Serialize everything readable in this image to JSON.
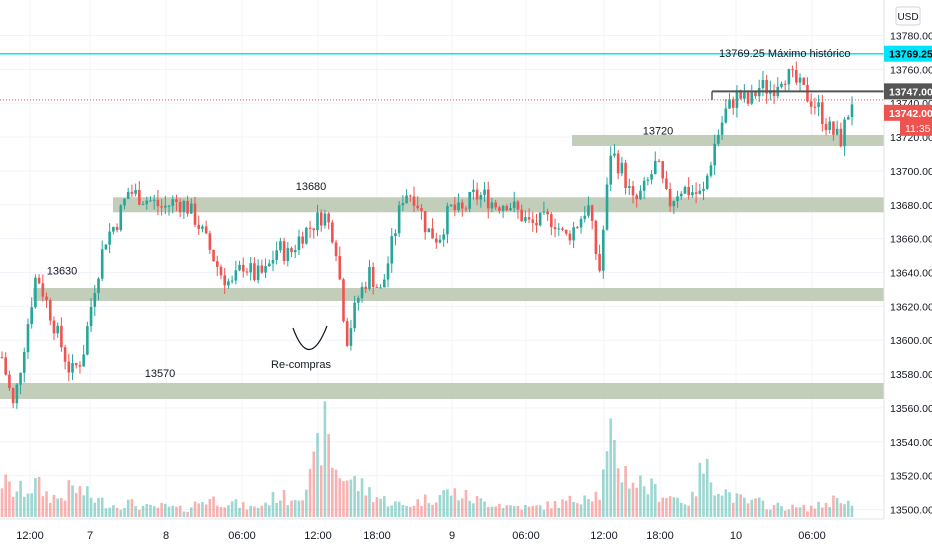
{
  "currency_label": "USD",
  "chart_data": {
    "type": "candlestick",
    "symbol_currency": "USD",
    "ylim": [
      13495,
      13795
    ],
    "y_ticks": [
      "13780.00",
      "13760.00",
      "13740.00",
      "13720.00",
      "13700.00",
      "13680.00",
      "13660.00",
      "13640.00",
      "13620.00",
      "13600.00",
      "13580.00",
      "13560.00",
      "13540.00",
      "13520.00",
      "13500.00"
    ],
    "y_tick_values": [
      13780,
      13760,
      13740,
      13720,
      13700,
      13680,
      13660,
      13640,
      13620,
      13600,
      13580,
      13560,
      13540,
      13520,
      13500
    ],
    "x_ticks": [
      "12:00",
      "7",
      "8",
      "06:00",
      "12:00",
      "18:00",
      "9",
      "06:00",
      "12:00",
      "18:00",
      "10",
      "06:00"
    ],
    "price_badges": [
      {
        "label": "13769.25",
        "value": 13769.25,
        "color": "#00e5ff",
        "text_color": "#000000"
      },
      {
        "label": "13747.00",
        "value": 13747.0,
        "color": "#555555",
        "text_color": "#ffffff"
      },
      {
        "label": "13742.00",
        "value": 13742.0,
        "color": "#ef5350",
        "text_color": "#ffffff"
      }
    ],
    "countdown_badge": {
      "label": "11:35",
      "color": "#ef5350"
    },
    "horizontal_lines": [
      {
        "value": 13769.25,
        "color": "#00e5ff",
        "style": "solid"
      },
      {
        "value": 13742.0,
        "color": "#ef5350",
        "style": "dotted"
      }
    ],
    "zones": [
      {
        "label": "13570",
        "value": 13570
      },
      {
        "label": "13630",
        "value": 13627
      },
      {
        "label": "13680",
        "value": 13680
      },
      {
        "label": "13720",
        "value": 13718
      }
    ],
    "annotations": [
      {
        "text": "13769.25 Máximo histórico"
      },
      {
        "text": "Re-compras"
      }
    ],
    "colors": {
      "up": "#26a69a",
      "down": "#ef5350",
      "zone": "#b7c5ad",
      "resistance": "#555555"
    },
    "price_path": [
      13590,
      13560,
      13600,
      13640,
      13620,
      13600,
      13580,
      13590,
      13630,
      13660,
      13670,
      13688,
      13685,
      13682,
      13678,
      13682,
      13680,
      13670,
      13655,
      13640,
      13632,
      13645,
      13638,
      13640,
      13655,
      13650,
      13662,
      13668,
      13675,
      13660,
      13600,
      13625,
      13640,
      13628,
      13658,
      13688,
      13685,
      13665,
      13660,
      13678,
      13675,
      13685,
      13685,
      13680,
      13682,
      13675,
      13668,
      13670,
      13672,
      13660,
      13668,
      13680,
      13640,
      13712,
      13700,
      13680,
      13690,
      13705,
      13680,
      13690,
      13688,
      13685,
      13715,
      13735,
      13745,
      13740,
      13750,
      13748,
      13758,
      13753,
      13745,
      13738,
      13725,
      13718,
      13742
    ],
    "volume_path": [
      20,
      14,
      15,
      18,
      12,
      10,
      16,
      14,
      10,
      8,
      6,
      8,
      6,
      5,
      6,
      5,
      4,
      8,
      10,
      9,
      8,
      6,
      5,
      8,
      12,
      10,
      14,
      22,
      50,
      26,
      22,
      18,
      14,
      10,
      8,
      6,
      8,
      10,
      12,
      14,
      12,
      10,
      8,
      8,
      6,
      6,
      5,
      6,
      7,
      8,
      10,
      14,
      12,
      40,
      26,
      20,
      18,
      14,
      12,
      10,
      8,
      28,
      20,
      14,
      10,
      8,
      8,
      6,
      6,
      5,
      5,
      6,
      8,
      12,
      6
    ]
  }
}
